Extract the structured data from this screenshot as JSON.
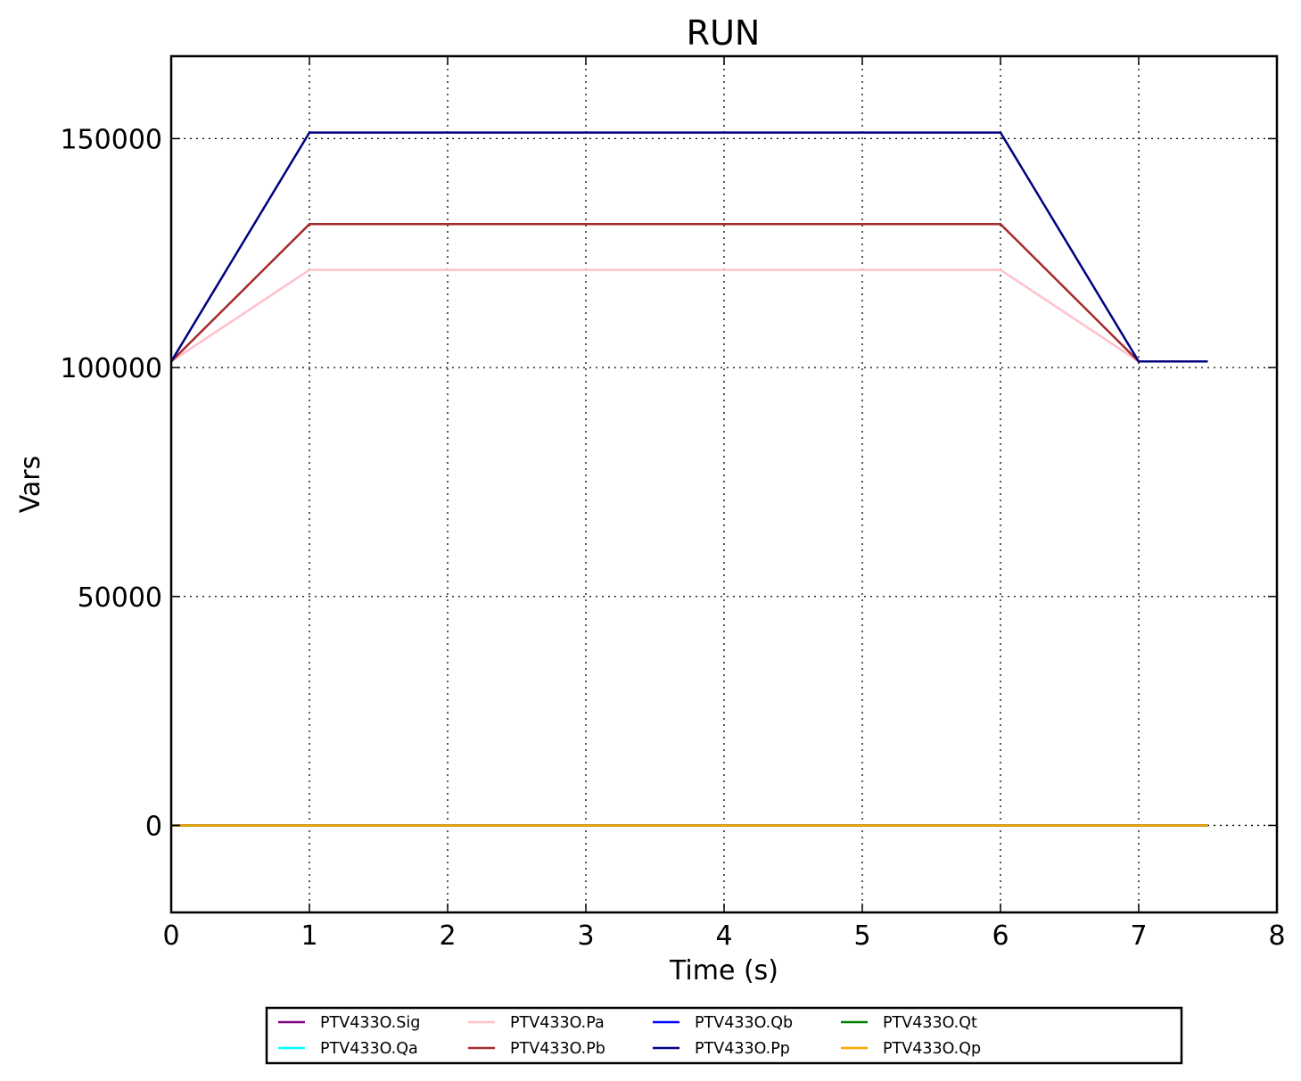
{
  "chart_data": {
    "type": "line",
    "title": "RUN",
    "xlabel": "Time (s)",
    "ylabel": "Vars",
    "xlim": [
      0,
      8
    ],
    "ylim": [
      -19000,
      168000
    ],
    "x_ticks": [
      0,
      1,
      2,
      3,
      4,
      5,
      6,
      7,
      8
    ],
    "y_ticks": [
      0,
      50000,
      100000,
      150000
    ],
    "x_tick_labels": [
      "0",
      "1",
      "2",
      "3",
      "4",
      "5",
      "6",
      "7",
      "8"
    ],
    "y_tick_labels": [
      "0",
      "50000",
      "100000",
      "150000"
    ],
    "grid": true,
    "legend_placement": "bottom-center, outside plot, 5 columns",
    "series": [
      {
        "name": "PTV433O.Sig",
        "color": "#800080",
        "x": [
          0,
          1,
          6,
          7,
          7.5
        ],
        "y": [
          0,
          0,
          0,
          0,
          0
        ]
      },
      {
        "name": "PTV433O.Qa",
        "color": "#00ffff",
        "x": [
          0,
          1,
          6,
          7,
          7.5
        ],
        "y": [
          0,
          0,
          0,
          0,
          0
        ]
      },
      {
        "name": "PTV433O.Pa",
        "color": "#ffc0cb",
        "x": [
          0,
          1,
          6,
          7,
          7.5
        ],
        "y": [
          101325,
          121325,
          121325,
          101325,
          101325
        ]
      },
      {
        "name": "PTV433O.Pb",
        "color": "#a52a2a",
        "x": [
          0,
          1,
          6,
          7,
          7.5
        ],
        "y": [
          101325,
          131325,
          131325,
          101325,
          101325
        ]
      },
      {
        "name": "PTV433O.Qb",
        "color": "#0000ff",
        "x": [
          0,
          1,
          6,
          7,
          7.5
        ],
        "y": [
          0,
          0,
          0,
          0,
          0
        ]
      },
      {
        "name": "PTV433O.Pp",
        "color": "#000080",
        "x": [
          0,
          1,
          6,
          7,
          7.5
        ],
        "y": [
          101325,
          151325,
          151325,
          101325,
          101325
        ]
      },
      {
        "name": "PTV433O.Qt",
        "color": "#008000",
        "x": [
          0,
          1,
          6,
          7,
          7.5
        ],
        "y": [
          0,
          0,
          0,
          0,
          0
        ]
      },
      {
        "name": "PTV433O.Qp",
        "color": "#ffa500",
        "x": [
          0,
          1,
          6,
          7,
          7.5
        ],
        "y": [
          0,
          0,
          0,
          0,
          0
        ]
      }
    ]
  }
}
